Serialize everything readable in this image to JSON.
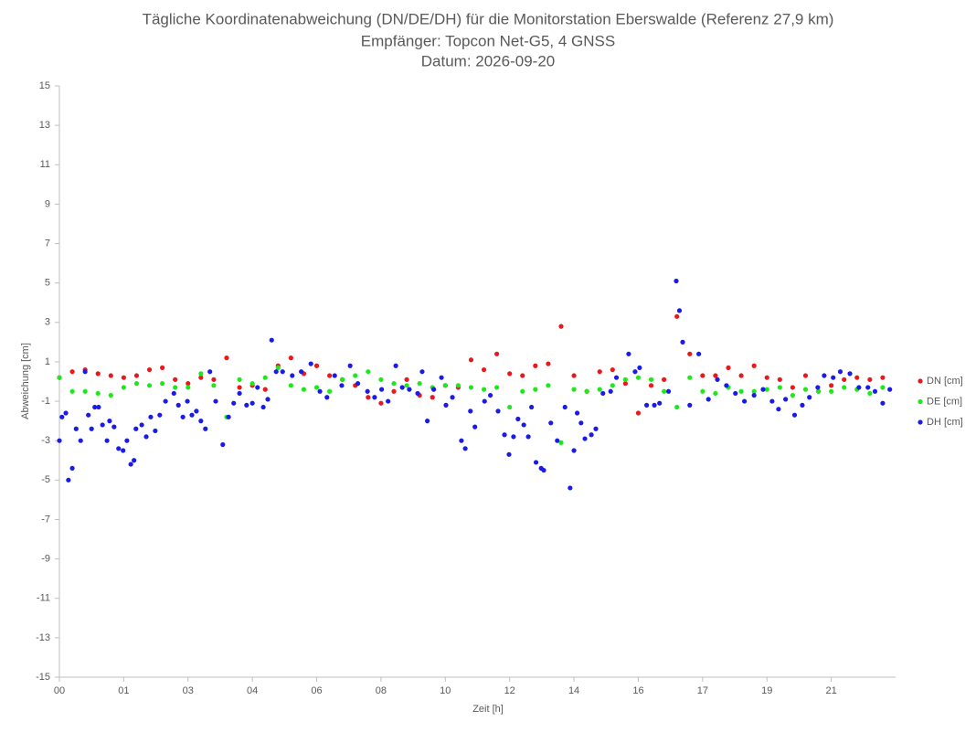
{
  "chart_data": {
    "type": "scatter",
    "title": [
      "Tägliche Koordinatenabweichung (DN/DE/DH) für die Monitorstation Eberswalde (Referenz 27,9 km)",
      "Empfänger: Topcon Net-G5, 4 GNSS",
      "Datum: 2026-09-20"
    ],
    "x_label": "Zeit [h]",
    "y_label": "Abweichung [cm]",
    "xlim": [
      0,
      13
    ],
    "xticks": [
      {
        "value": 0,
        "label": "00"
      },
      {
        "value": 1,
        "label": "01"
      },
      {
        "value": 2,
        "label": "03"
      },
      {
        "value": 3,
        "label": "04"
      },
      {
        "value": 4,
        "label": "06"
      },
      {
        "value": 5,
        "label": "08"
      },
      {
        "value": 6,
        "label": "10"
      },
      {
        "value": 7,
        "label": "12"
      },
      {
        "value": 8,
        "label": "14"
      },
      {
        "value": 9,
        "label": "16"
      },
      {
        "value": 10,
        "label": "17"
      },
      {
        "value": 11,
        "label": "19"
      },
      {
        "value": 12,
        "label": "21"
      }
    ],
    "ylim": [
      -15,
      15
    ],
    "yticks": [
      -15,
      -13,
      -11,
      -9,
      -7,
      -5,
      -3,
      -1,
      1,
      3,
      5,
      7,
      9,
      11,
      13,
      15
    ],
    "grid": false,
    "legend": "right",
    "series": [
      {
        "name": "DN [cm]",
        "color": "#e8181b",
        "x": [
          0,
          0.2,
          0.4,
          0.6,
          0.8,
          1.0,
          1.2,
          1.4,
          1.6,
          1.8,
          2.0,
          2.2,
          2.4,
          2.6,
          2.8,
          3.0,
          3.2,
          3.4,
          3.6,
          3.8,
          4.0,
          4.2,
          4.4,
          4.6,
          4.8,
          5.0,
          5.2,
          5.4,
          5.6,
          5.8,
          6.0,
          6.2,
          6.4,
          6.6,
          6.8,
          7.0,
          7.2,
          7.4,
          7.6,
          7.8,
          8.0,
          8.2,
          8.4,
          8.6,
          8.8,
          9.0,
          9.2,
          9.4,
          9.6,
          9.8,
          10.0,
          10.2,
          10.4,
          10.6,
          10.8,
          11.0,
          11.2,
          11.4,
          11.6,
          11.8,
          12.0,
          12.2,
          12.4,
          12.6,
          12.8
        ],
        "values": [
          0.2,
          0.5,
          0.6,
          0.4,
          0.3,
          0.2,
          0.3,
          0.6,
          0.7,
          0.1,
          -0.1,
          0.2,
          0.1,
          1.2,
          -0.3,
          -0.2,
          -0.4,
          0.8,
          1.2,
          0.4,
          0.8,
          0.3,
          0.1,
          -0.2,
          -0.8,
          -1.1,
          -0.5,
          0.1,
          -0.7,
          -0.8,
          -0.2,
          -0.3,
          1.1,
          0.6,
          1.4,
          0.4,
          0.3,
          0.8,
          0.9,
          2.8,
          0.3,
          -0.5,
          0.5,
          0.6,
          -0.1,
          -1.6,
          -0.2,
          0.1,
          3.3,
          1.4,
          0.3,
          0.3,
          0.7,
          0.3,
          0.8,
          0.2,
          0.1,
          -0.3,
          0.3,
          -0.5,
          -0.2,
          0.1,
          0.2,
          0.1,
          0.2
        ]
      },
      {
        "name": "DE [cm]",
        "color": "#1ee81b",
        "x": [
          0,
          0.2,
          0.4,
          0.6,
          0.8,
          1.0,
          1.2,
          1.4,
          1.6,
          1.8,
          2.0,
          2.2,
          2.4,
          2.6,
          2.8,
          3.0,
          3.2,
          3.4,
          3.6,
          3.8,
          4.0,
          4.2,
          4.4,
          4.6,
          4.8,
          5.0,
          5.2,
          5.4,
          5.6,
          5.8,
          6.0,
          6.2,
          6.4,
          6.6,
          6.8,
          7.0,
          7.2,
          7.4,
          7.6,
          7.8,
          8.0,
          8.2,
          8.4,
          8.6,
          8.8,
          9.0,
          9.2,
          9.4,
          9.6,
          9.8,
          10.0,
          10.2,
          10.4,
          10.6,
          10.8,
          11.0,
          11.2,
          11.4,
          11.6,
          11.8,
          12.0,
          12.2,
          12.4,
          12.6,
          12.8
        ],
        "values": [
          0.2,
          -0.5,
          -0.5,
          -0.6,
          -0.7,
          -0.3,
          -0.1,
          -0.2,
          -0.1,
          -0.3,
          -0.3,
          0.4,
          -0.2,
          -1.8,
          0.1,
          -0.1,
          0.2,
          0.7,
          -0.2,
          -0.4,
          -0.3,
          -0.5,
          0.1,
          0.3,
          0.5,
          0.1,
          -0.1,
          -0.2,
          -0.1,
          -0.3,
          -0.2,
          -0.2,
          -0.3,
          -0.4,
          -0.3,
          -1.3,
          -0.5,
          -0.4,
          -0.2,
          -3.1,
          -0.4,
          -0.5,
          -0.4,
          -0.2,
          0.1,
          0.2,
          0.1,
          -0.5,
          -1.3,
          0.2,
          -0.5,
          -0.6,
          -0.3,
          -0.5,
          -0.5,
          -0.4,
          -0.3,
          -0.7,
          -0.4,
          -0.5,
          -0.5,
          -0.3,
          -0.4,
          -0.6,
          -0.3
        ]
      },
      {
        "name": "DH [cm]",
        "color": "#1b1be8",
        "x": [
          0,
          0.04,
          0.1,
          0.14,
          0.2,
          0.26,
          0.33,
          0.4,
          0.45,
          0.5,
          0.55,
          0.61,
          0.67,
          0.74,
          0.78,
          0.85,
          0.92,
          0.99,
          1.05,
          1.11,
          1.16,
          1.19,
          1.28,
          1.35,
          1.42,
          1.49,
          1.56,
          1.65,
          1.78,
          1.85,
          1.92,
          1.99,
          2.06,
          2.13,
          2.2,
          2.27,
          2.34,
          2.43,
          2.54,
          2.63,
          2.71,
          2.8,
          2.91,
          3.0,
          3.08,
          3.17,
          3.24,
          3.3,
          3.37,
          3.47,
          3.62,
          3.76,
          3.91,
          4.05,
          4.16,
          4.28,
          4.39,
          4.52,
          4.64,
          4.79,
          4.9,
          5.01,
          5.11,
          5.23,
          5.33,
          5.44,
          5.57,
          5.64,
          5.72,
          5.82,
          5.94,
          6.01,
          6.11,
          6.25,
          6.31,
          6.39,
          6.46,
          6.61,
          6.7,
          6.82,
          6.92,
          6.99,
          7.06,
          7.13,
          7.22,
          7.29,
          7.34,
          7.41,
          7.49,
          7.53,
          7.64,
          7.74,
          7.86,
          7.94,
          8.0,
          8.05,
          8.11,
          8.17,
          8.27,
          8.34,
          8.45,
          8.57,
          8.66,
          8.85,
          8.95,
          9.02,
          9.13,
          9.25,
          9.33,
          9.47,
          9.59,
          9.64,
          9.69,
          9.8,
          9.94,
          10.09,
          10.23,
          10.37,
          10.51,
          10.65,
          10.8,
          10.94,
          11.08,
          11.18,
          11.29,
          11.43,
          11.55,
          11.66,
          11.79,
          11.89,
          12.03,
          12.14,
          12.29,
          12.43,
          12.57,
          12.68,
          12.8,
          12.91
        ],
        "values": [
          -3,
          -1.8,
          -1.6,
          -5,
          -4.4,
          -2.4,
          -3,
          0.5,
          -1.7,
          -2.4,
          -1.3,
          -1.3,
          -2.2,
          -3,
          -2,
          -2.3,
          -3.4,
          -3.5,
          -3,
          -4.2,
          -4,
          -2.4,
          -2.2,
          -2.8,
          -1.8,
          -2.5,
          -1.7,
          -1,
          -0.6,
          -1.2,
          -1.8,
          -1,
          -1.7,
          -1.5,
          -2,
          -2.4,
          0.5,
          -1,
          -3.2,
          -1.8,
          -1.1,
          -0.6,
          -1.2,
          -1.1,
          -0.3,
          -1.3,
          -0.9,
          2.1,
          0.5,
          0.5,
          0.3,
          0.5,
          0.9,
          -0.5,
          -0.8,
          0.3,
          -0.2,
          0.8,
          -0.1,
          -0.5,
          -0.8,
          -0.4,
          -1,
          0.8,
          -0.3,
          -0.4,
          -0.6,
          0.5,
          -2,
          -0.4,
          0.2,
          -1.2,
          -0.8,
          -3,
          -3.4,
          -1.5,
          -2.3,
          -1,
          -0.7,
          -1.5,
          -2.7,
          -3.7,
          -2.8,
          -1.9,
          -2.2,
          -2.8,
          -1.3,
          -4.1,
          -4.4,
          -4.5,
          -2.1,
          -3,
          -1.3,
          -5.4,
          -3.5,
          -1.6,
          -2.1,
          -2.9,
          -2.7,
          -2.4,
          -0.6,
          -0.5,
          0.2,
          1.4,
          0.5,
          0.7,
          -1.2,
          -1.2,
          -1.1,
          -0.5,
          5.1,
          3.6,
          2,
          -1.2,
          1.4,
          -0.9,
          0.1,
          -0.2,
          -0.6,
          -1,
          -0.7,
          -0.4,
          -1,
          -1.4,
          -0.9,
          -1.7,
          -1.2,
          -0.8,
          -0.3,
          0.3,
          0.2,
          0.5,
          0.4,
          -0.3,
          -0.3,
          -0.5,
          -1.1,
          -0.4
        ]
      }
    ]
  }
}
